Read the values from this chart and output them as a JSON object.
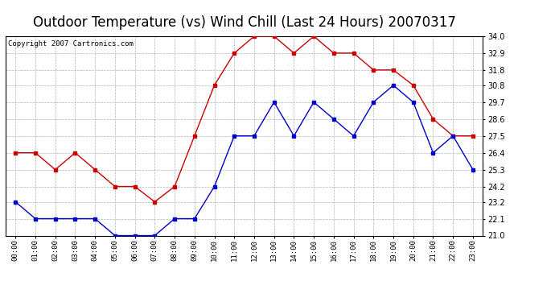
{
  "title": "Outdoor Temperature (vs) Wind Chill (Last 24 Hours) 20070317",
  "copyright": "Copyright 2007 Cartronics.com",
  "hours": [
    "00:00",
    "01:00",
    "02:00",
    "03:00",
    "04:00",
    "05:00",
    "06:00",
    "07:00",
    "08:00",
    "09:00",
    "10:00",
    "11:00",
    "12:00",
    "13:00",
    "14:00",
    "15:00",
    "16:00",
    "17:00",
    "18:00",
    "19:00",
    "20:00",
    "21:00",
    "22:00",
    "23:00"
  ],
  "temp": [
    26.4,
    26.4,
    25.3,
    26.4,
    25.3,
    24.2,
    24.2,
    23.2,
    24.2,
    27.5,
    30.8,
    32.9,
    34.0,
    34.0,
    32.9,
    34.0,
    32.9,
    32.9,
    31.8,
    31.8,
    30.8,
    28.6,
    27.5,
    27.5
  ],
  "windchill": [
    23.2,
    22.1,
    22.1,
    22.1,
    22.1,
    21.0,
    21.0,
    21.0,
    22.1,
    22.1,
    24.2,
    27.5,
    27.5,
    29.7,
    27.5,
    29.7,
    28.6,
    27.5,
    29.7,
    30.8,
    29.7,
    26.4,
    27.5,
    25.3
  ],
  "temp_color": "#cc0000",
  "windchill_color": "#0000cc",
  "ylim": [
    21.0,
    34.0
  ],
  "yticks": [
    21.0,
    22.1,
    23.2,
    24.2,
    25.3,
    26.4,
    27.5,
    28.6,
    29.7,
    30.8,
    31.8,
    32.9,
    34.0
  ],
  "bg_color": "#ffffff",
  "grid_color": "#aaaaaa",
  "title_fontsize": 12,
  "copyright_fontsize": 6.5
}
